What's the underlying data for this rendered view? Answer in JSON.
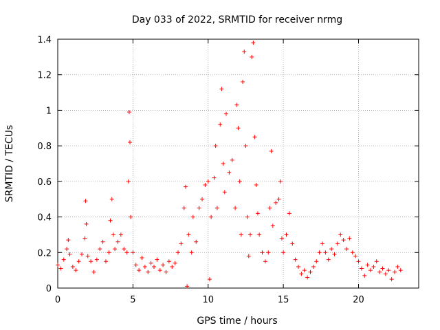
{
  "chart_data": {
    "type": "scatter",
    "title": "Day 033 of 2022, SRMTID for receiver nrmg",
    "xlabel": "GPS time / hours",
    "ylabel": "SRMTID / TECUs",
    "xlim": [
      0,
      24
    ],
    "ylim": [
      0,
      1.4
    ],
    "xticks": [
      0,
      5,
      10,
      15,
      20
    ],
    "yticks": [
      0,
      0.2,
      0.4,
      0.6,
      0.8,
      1,
      1.2,
      1.4
    ],
    "ytick_labels": [
      "0",
      "0.2",
      "0.4",
      "0.6",
      "0.8",
      "1",
      "1.2",
      "1.4"
    ],
    "grid": true,
    "marker": "+",
    "color": "#ff0000",
    "series": [
      {
        "name": "SRMTID",
        "points": [
          [
            0.0,
            0.13
          ],
          [
            0.2,
            0.11
          ],
          [
            0.4,
            0.16
          ],
          [
            0.6,
            0.22
          ],
          [
            0.7,
            0.27
          ],
          [
            0.8,
            0.19
          ],
          [
            1.0,
            0.12
          ],
          [
            1.2,
            0.1
          ],
          [
            1.4,
            0.15
          ],
          [
            1.6,
            0.19
          ],
          [
            1.8,
            0.28
          ],
          [
            1.85,
            0.49
          ],
          [
            1.9,
            0.36
          ],
          [
            2.0,
            0.18
          ],
          [
            2.2,
            0.15
          ],
          [
            2.4,
            0.09
          ],
          [
            2.6,
            0.16
          ],
          [
            2.8,
            0.22
          ],
          [
            3.0,
            0.26
          ],
          [
            3.2,
            0.15
          ],
          [
            3.4,
            0.2
          ],
          [
            3.5,
            0.38
          ],
          [
            3.6,
            0.5
          ],
          [
            3.7,
            0.3
          ],
          [
            3.8,
            0.22
          ],
          [
            4.0,
            0.26
          ],
          [
            4.2,
            0.3
          ],
          [
            4.4,
            0.22
          ],
          [
            4.6,
            0.2
          ],
          [
            4.7,
            0.6
          ],
          [
            4.75,
            0.99
          ],
          [
            4.8,
            0.82
          ],
          [
            4.85,
            0.4
          ],
          [
            5.0,
            0.2
          ],
          [
            5.2,
            0.13
          ],
          [
            5.4,
            0.1
          ],
          [
            5.6,
            0.17
          ],
          [
            5.8,
            0.12
          ],
          [
            6.0,
            0.09
          ],
          [
            6.2,
            0.14
          ],
          [
            6.4,
            0.12
          ],
          [
            6.6,
            0.16
          ],
          [
            6.8,
            0.1
          ],
          [
            7.0,
            0.13
          ],
          [
            7.2,
            0.09
          ],
          [
            7.4,
            0.15
          ],
          [
            7.6,
            0.12
          ],
          [
            7.8,
            0.14
          ],
          [
            8.0,
            0.2
          ],
          [
            8.2,
            0.25
          ],
          [
            8.4,
            0.45
          ],
          [
            8.5,
            0.57
          ],
          [
            8.6,
            0.01
          ],
          [
            8.7,
            0.3
          ],
          [
            8.9,
            0.2
          ],
          [
            9.0,
            0.4
          ],
          [
            9.2,
            0.26
          ],
          [
            9.4,
            0.45
          ],
          [
            9.6,
            0.5
          ],
          [
            9.8,
            0.58
          ],
          [
            10.0,
            0.6
          ],
          [
            10.1,
            0.05
          ],
          [
            10.2,
            0.4
          ],
          [
            10.4,
            0.62
          ],
          [
            10.5,
            0.8
          ],
          [
            10.6,
            0.45
          ],
          [
            10.8,
            0.92
          ],
          [
            10.9,
            1.12
          ],
          [
            11.0,
            0.7
          ],
          [
            11.1,
            0.54
          ],
          [
            11.2,
            0.98
          ],
          [
            11.4,
            0.65
          ],
          [
            11.6,
            0.72
          ],
          [
            11.8,
            0.45
          ],
          [
            11.9,
            1.03
          ],
          [
            12.0,
            0.9
          ],
          [
            12.1,
            0.6
          ],
          [
            12.2,
            0.3
          ],
          [
            12.3,
            1.16
          ],
          [
            12.4,
            1.33
          ],
          [
            12.5,
            0.8
          ],
          [
            12.6,
            0.4
          ],
          [
            12.7,
            0.18
          ],
          [
            12.8,
            0.3
          ],
          [
            12.9,
            1.3
          ],
          [
            13.0,
            1.38
          ],
          [
            13.1,
            0.85
          ],
          [
            13.2,
            0.58
          ],
          [
            13.3,
            0.42
          ],
          [
            13.4,
            0.3
          ],
          [
            13.6,
            0.2
          ],
          [
            13.8,
            0.15
          ],
          [
            14.0,
            0.2
          ],
          [
            14.1,
            0.45
          ],
          [
            14.2,
            0.77
          ],
          [
            14.3,
            0.35
          ],
          [
            14.5,
            0.48
          ],
          [
            14.7,
            0.5
          ],
          [
            14.8,
            0.6
          ],
          [
            14.9,
            0.28
          ],
          [
            15.0,
            0.2
          ],
          [
            15.2,
            0.3
          ],
          [
            15.4,
            0.42
          ],
          [
            15.6,
            0.25
          ],
          [
            15.8,
            0.16
          ],
          [
            16.0,
            0.12
          ],
          [
            16.2,
            0.08
          ],
          [
            16.4,
            0.1
          ],
          [
            16.6,
            0.06
          ],
          [
            16.8,
            0.09
          ],
          [
            17.0,
            0.12
          ],
          [
            17.2,
            0.15
          ],
          [
            17.4,
            0.2
          ],
          [
            17.6,
            0.25
          ],
          [
            17.8,
            0.2
          ],
          [
            18.0,
            0.16
          ],
          [
            18.2,
            0.22
          ],
          [
            18.4,
            0.19
          ],
          [
            18.6,
            0.25
          ],
          [
            18.8,
            0.3
          ],
          [
            19.0,
            0.27
          ],
          [
            19.2,
            0.22
          ],
          [
            19.4,
            0.28
          ],
          [
            19.6,
            0.2
          ],
          [
            19.8,
            0.18
          ],
          [
            20.0,
            0.15
          ],
          [
            20.2,
            0.11
          ],
          [
            20.4,
            0.07
          ],
          [
            20.6,
            0.13
          ],
          [
            20.8,
            0.1
          ],
          [
            21.0,
            0.12
          ],
          [
            21.2,
            0.15
          ],
          [
            21.4,
            0.09
          ],
          [
            21.6,
            0.11
          ],
          [
            21.8,
            0.08
          ],
          [
            22.0,
            0.1
          ],
          [
            22.2,
            0.05
          ],
          [
            22.4,
            0.09
          ],
          [
            22.6,
            0.12
          ],
          [
            22.8,
            0.1
          ]
        ]
      }
    ]
  }
}
